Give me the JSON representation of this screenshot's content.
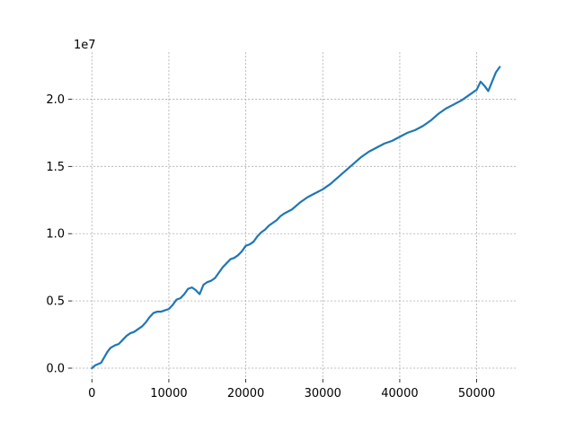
{
  "chart_data": {
    "type": "line",
    "title": "",
    "xlabel": "",
    "ylabel": "",
    "y_offset_label": "1e7",
    "xlim": [
      -2600,
      55300
    ],
    "ylim": [
      -800000,
      23500000
    ],
    "x_ticks": [
      0,
      10000,
      20000,
      30000,
      40000,
      50000
    ],
    "x_tick_labels": [
      "0",
      "10000",
      "20000",
      "30000",
      "40000",
      "50000"
    ],
    "y_ticks": [
      0,
      5000000,
      10000000,
      15000000,
      20000000
    ],
    "y_tick_labels": [
      "0.0",
      "0.5",
      "1.0",
      "1.5",
      "2.0"
    ],
    "grid": true,
    "legend": "none",
    "colors": {
      "series": "#1f77b4",
      "grid": "#b0b0b0"
    },
    "series": [
      {
        "x": [
          0,
          400,
          800,
          1200,
          1600,
          2000,
          2400,
          3000,
          3500,
          4000,
          4500,
          5000,
          5500,
          6000,
          6500,
          7000,
          7500,
          8000,
          8500,
          9000,
          9500,
          10000,
          10500,
          11000,
          11500,
          12000,
          12500,
          13000,
          13500,
          14000,
          14500,
          15000,
          15500,
          16000,
          16500,
          17000,
          17500,
          18000,
          18500,
          19000,
          19500,
          20000,
          20500,
          21000,
          21500,
          22000,
          22500,
          23000,
          23500,
          24000,
          24500,
          25000,
          26000,
          27000,
          28000,
          29000,
          30000,
          31000,
          32000,
          33000,
          34000,
          35000,
          36000,
          37000,
          38000,
          39000,
          40000,
          41000,
          42000,
          43000,
          44000,
          45000,
          46000,
          47000,
          48000,
          49000,
          50000,
          50500,
          51000,
          51500,
          52000,
          52500,
          53000
        ],
        "y": [
          0,
          200000,
          300000,
          400000,
          800000,
          1200000,
          1500000,
          1700000,
          1800000,
          2100000,
          2400000,
          2600000,
          2700000,
          2900000,
          3100000,
          3400000,
          3800000,
          4100000,
          4200000,
          4200000,
          4300000,
          4400000,
          4700000,
          5100000,
          5200000,
          5500000,
          5900000,
          6000000,
          5800000,
          5500000,
          6200000,
          6400000,
          6500000,
          6700000,
          7100000,
          7500000,
          7800000,
          8100000,
          8200000,
          8400000,
          8700000,
          9100000,
          9200000,
          9400000,
          9800000,
          10100000,
          10300000,
          10600000,
          10800000,
          11000000,
          11300000,
          11500000,
          11800000,
          12300000,
          12700000,
          13000000,
          13300000,
          13700000,
          14200000,
          14700000,
          15200000,
          15700000,
          16100000,
          16400000,
          16700000,
          16900000,
          17200000,
          17500000,
          17700000,
          18000000,
          18400000,
          18900000,
          19300000,
          19600000,
          19900000,
          20300000,
          20700000,
          21300000,
          21000000,
          20600000,
          21300000,
          22000000,
          22400000
        ]
      }
    ]
  }
}
